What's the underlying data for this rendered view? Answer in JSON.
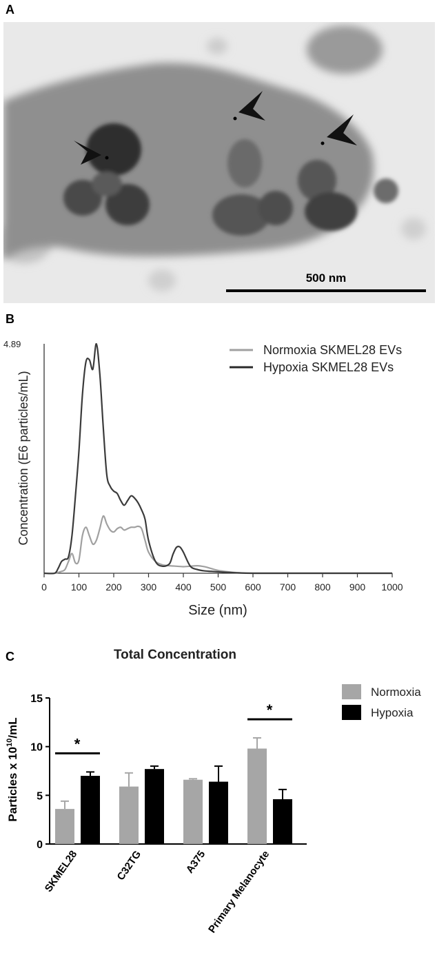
{
  "panels": {
    "a": "A",
    "b": "B",
    "c": "C"
  },
  "micrograph": {
    "scale_label": "500 nm"
  },
  "chart_data": [
    {
      "type": "line",
      "xlabel": "Size (nm)",
      "ylabel": "Concentration (E6 particles/mL)",
      "xlim": [
        0,
        1000
      ],
      "ylim": [
        0,
        4.89
      ],
      "x_ticks": [
        "0",
        "100",
        "200",
        "300",
        "400",
        "500",
        "600",
        "700",
        "800",
        "900",
        "1000"
      ],
      "y_max_label": "4.89",
      "legend": "top-right",
      "series": [
        {
          "name": "Normoxia SKMEL28 EVs",
          "color": "#a0a0a0",
          "x": [
            0,
            30,
            50,
            60,
            70,
            80,
            90,
            100,
            110,
            120,
            130,
            140,
            150,
            160,
            170,
            180,
            190,
            200,
            210,
            220,
            230,
            240,
            250,
            260,
            270,
            280,
            290,
            300,
            320,
            340,
            360,
            380,
            400,
            420,
            440,
            460,
            480,
            500,
            530,
            560,
            600,
            700,
            800,
            900,
            1000
          ],
          "y": [
            0,
            0,
            0.04,
            0.08,
            0.25,
            0.42,
            0.22,
            0.28,
            0.8,
            0.98,
            0.8,
            0.62,
            0.7,
            0.95,
            1.22,
            1.05,
            0.92,
            0.88,
            0.95,
            0.98,
            0.92,
            0.95,
            0.98,
            0.98,
            1.0,
            0.95,
            0.7,
            0.45,
            0.25,
            0.18,
            0.16,
            0.15,
            0.14,
            0.15,
            0.16,
            0.14,
            0.1,
            0.06,
            0.03,
            0.01,
            0,
            0,
            0,
            0,
            0
          ]
        },
        {
          "name": "Hypoxia SKMEL28 EVs",
          "color": "#3a3a3a",
          "x": [
            0,
            30,
            40,
            50,
            60,
            70,
            80,
            90,
            100,
            110,
            120,
            130,
            140,
            150,
            160,
            170,
            180,
            190,
            200,
            210,
            220,
            230,
            240,
            250,
            260,
            270,
            280,
            290,
            300,
            320,
            340,
            360,
            370,
            380,
            390,
            400,
            420,
            440,
            460,
            480,
            500,
            520,
            550,
            600,
            700,
            800,
            900,
            1000
          ],
          "y": [
            0,
            0,
            0.1,
            0.25,
            0.3,
            0.35,
            0.8,
            1.65,
            2.6,
            3.8,
            4.5,
            4.55,
            4.35,
            4.89,
            4.25,
            3.1,
            2.1,
            1.85,
            1.75,
            1.7,
            1.55,
            1.45,
            1.55,
            1.65,
            1.6,
            1.5,
            1.35,
            1.15,
            0.7,
            0.25,
            0.15,
            0.2,
            0.4,
            0.55,
            0.56,
            0.45,
            0.15,
            0.08,
            0.05,
            0.04,
            0.03,
            0.02,
            0.01,
            0,
            0,
            0,
            0,
            0
          ]
        }
      ]
    },
    {
      "type": "bar",
      "title": "Total Concentration",
      "ylabel_main": "Particles x 10",
      "ylabel_sup": "10",
      "ylabel_tail": "/mL",
      "categories": [
        "SKMEL28",
        "C32TG",
        "A375",
        "Primary Melanocyte"
      ],
      "ylim": [
        0,
        15
      ],
      "y_ticks": [
        "0",
        "5",
        "10",
        "15"
      ],
      "legend": "top-right",
      "series": [
        {
          "name": "Normoxia",
          "color": "#a6a6a6",
          "values": [
            3.6,
            5.9,
            6.6,
            9.8
          ],
          "errors": [
            0.8,
            1.4,
            0.1,
            1.1
          ]
        },
        {
          "name": "Hypoxia",
          "color": "#000000",
          "values": [
            7.0,
            7.7,
            6.4,
            4.6
          ],
          "errors": [
            0.4,
            0.3,
            1.6,
            1.0
          ]
        }
      ],
      "significance": [
        {
          "category": 0,
          "label": "*"
        },
        {
          "category": 3,
          "label": "*"
        }
      ]
    }
  ]
}
